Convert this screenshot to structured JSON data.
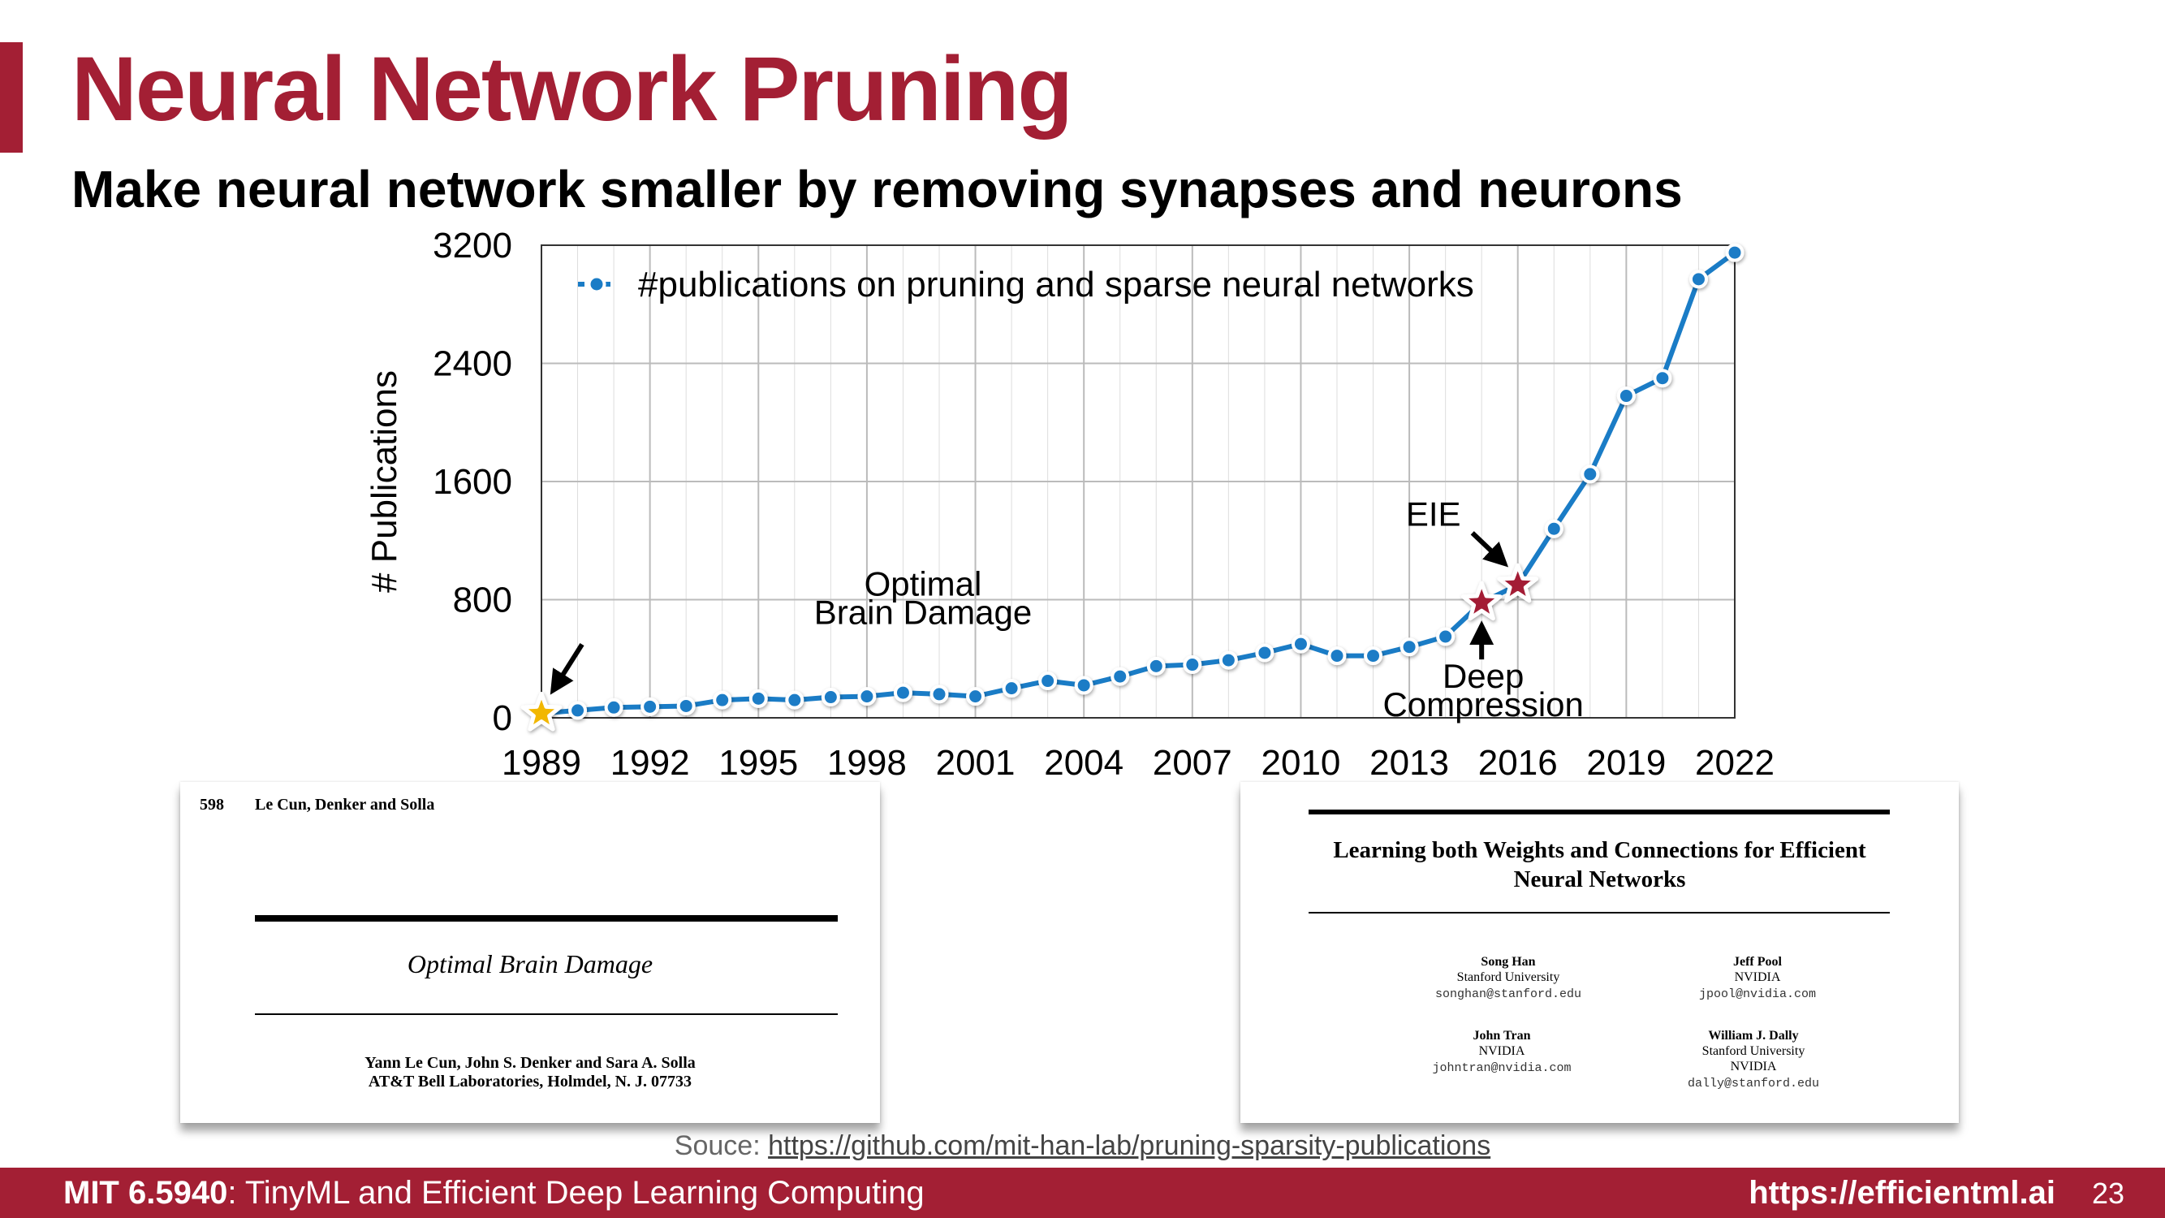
{
  "slide": {
    "title": "Neural Network Pruning",
    "subtitle": "Make neural network smaller by removing synapses and neurons",
    "source_prefix": "Souce: ",
    "source_link": "https://github.com/mit-han-lab/pruning-sparsity-publications",
    "footer_course_bold": "MIT 6.5940",
    "footer_course_rest": ": TinyML and Efficient Deep Learning Computing",
    "footer_site": "https://efficientml.ai",
    "page_number": "23",
    "colors": {
      "accent": "#a31f34",
      "series": "#1a7cc6",
      "star_red": "#a31f34",
      "star_gold": "#f2b705"
    }
  },
  "chart_data": {
    "type": "line",
    "ylabel": "# Publications",
    "xlabel": "",
    "x_ticks": [
      1989,
      1992,
      1995,
      1998,
      2001,
      2004,
      2007,
      2010,
      2013,
      2016,
      2019,
      2022
    ],
    "y_ticks": [
      0,
      800,
      1600,
      2400,
      3200
    ],
    "xlim": [
      1989,
      2022
    ],
    "ylim": [
      0,
      3200
    ],
    "grid": true,
    "legend_position": "top-left",
    "series": [
      {
        "name": "#publications on pruning and sparse neural networks",
        "x": [
          1989,
          1990,
          1991,
          1992,
          1993,
          1994,
          1995,
          1996,
          1997,
          1998,
          1999,
          2000,
          2001,
          2002,
          2003,
          2004,
          2005,
          2006,
          2007,
          2008,
          2009,
          2010,
          2011,
          2012,
          2013,
          2014,
          2015,
          2016,
          2017,
          2018,
          2019,
          2020,
          2021,
          2022
        ],
        "y": [
          30,
          50,
          70,
          75,
          80,
          120,
          130,
          120,
          140,
          145,
          170,
          160,
          145,
          200,
          250,
          220,
          280,
          350,
          360,
          390,
          440,
          500,
          420,
          420,
          480,
          550,
          780,
          900,
          1280,
          1650,
          2180,
          2300,
          2970,
          3150
        ]
      }
    ],
    "annotations": [
      {
        "text_lines": [
          "Optimal",
          "Brain Damage"
        ],
        "x": 1989,
        "y": 30,
        "marker": "star-gold"
      },
      {
        "text_lines": [
          "Deep",
          "Compression"
        ],
        "x": 2015,
        "y": 780,
        "marker": "star-red"
      },
      {
        "text_lines": [
          "EIE"
        ],
        "x": 2016,
        "y": 900,
        "marker": "star-red"
      }
    ]
  },
  "paper_left": {
    "page_num": "598",
    "running_head": "Le Cun, Denker and Solla",
    "title": "Optimal Brain Damage",
    "authors": "Yann Le Cun, John S. Denker and Sara A. Solla",
    "affiliation": "AT&T Bell Laboratories, Holmdel, N. J. 07733"
  },
  "paper_right": {
    "title_line1": "Learning both Weights and Connections for Efficient",
    "title_line2": "Neural Networks",
    "authors": [
      {
        "name": "Song Han",
        "affil": [
          "Stanford University"
        ],
        "email": "songhan@stanford.edu"
      },
      {
        "name": "Jeff Pool",
        "affil": [
          "NVIDIA"
        ],
        "email": "jpool@nvidia.com"
      },
      {
        "name": "John Tran",
        "affil": [
          "NVIDIA"
        ],
        "email": "johntran@nvidia.com"
      },
      {
        "name": "William J. Dally",
        "affil": [
          "Stanford University",
          "NVIDIA"
        ],
        "email": "dally@stanford.edu"
      }
    ]
  }
}
